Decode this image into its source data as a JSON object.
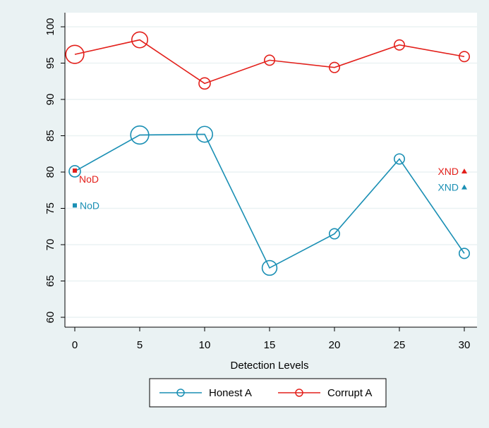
{
  "chart_data": {
    "type": "line",
    "title": "",
    "xlabel": "Detection Levels",
    "ylabel": "",
    "xlim": [
      -1,
      31
    ],
    "ylim": [
      58,
      101
    ],
    "x_ticks": [
      0,
      5,
      10,
      15,
      20,
      25,
      30
    ],
    "y_ticks": [
      60,
      65,
      70,
      75,
      80,
      85,
      90,
      95,
      100
    ],
    "grid": true,
    "legend_position": "bottom",
    "series": [
      {
        "name": "Honest A",
        "color": "#1a8fb4",
        "x": [
          0,
          5,
          10,
          15,
          20,
          25,
          30
        ],
        "y": [
          80.1,
          85.1,
          85.2,
          66.8,
          71.5,
          81.8,
          68.8
        ],
        "marker_weight": [
          1.0,
          1.6,
          1.4,
          1.3,
          0.9,
          0.9,
          0.9
        ]
      },
      {
        "name": "Corrupt A",
        "color": "#e3201b",
        "x": [
          0,
          5,
          10,
          15,
          20,
          25,
          30
        ],
        "y": [
          96.2,
          98.2,
          92.2,
          95.4,
          94.4,
          97.5,
          95.9
        ],
        "marker_weight": [
          1.6,
          1.4,
          1.0,
          0.9,
          0.9,
          0.9,
          0.9
        ]
      }
    ],
    "annotations": [
      {
        "label": "NoD",
        "x": 0,
        "y": 80.2,
        "marker": "square",
        "color": "#e3201b",
        "side": "right-below"
      },
      {
        "label": "NoD",
        "x": 0,
        "y": 75.4,
        "marker": "square",
        "color": "#1a8fb4",
        "side": "right"
      },
      {
        "label": "XND",
        "x": 30,
        "y": 80.1,
        "marker": "triangle",
        "color": "#e3201b",
        "side": "left"
      },
      {
        "label": "XND",
        "x": 30,
        "y": 77.9,
        "marker": "triangle",
        "color": "#1a8fb4",
        "side": "left"
      }
    ]
  }
}
